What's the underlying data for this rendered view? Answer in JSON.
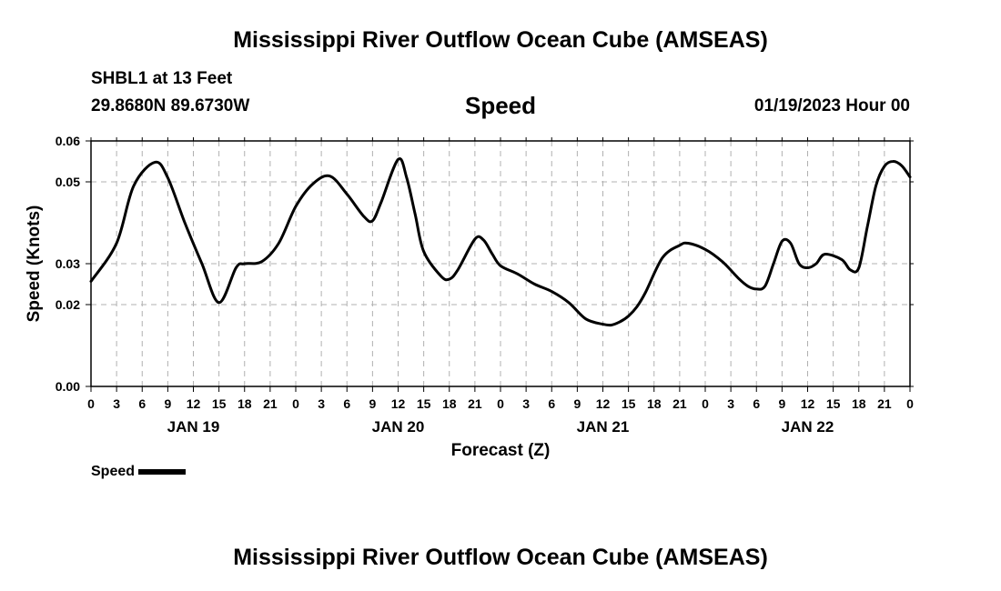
{
  "header": {
    "title": "Mississippi River Outflow Ocean Cube (AMSEAS)",
    "station": "SHBL1 at 13 Feet",
    "coords": "29.8680N  89.6730W",
    "variable": "Speed",
    "datetime": "01/19/2023 Hour 00"
  },
  "footer": {
    "title": "Mississippi River Outflow Ocean Cube (AMSEAS)"
  },
  "legend": {
    "label": "Speed"
  },
  "chart_data": {
    "type": "line",
    "title": "Speed",
    "xlabel": "Forecast (Z)",
    "ylabel": "Speed (Knots)",
    "xlim": [
      0,
      96
    ],
    "ylim": [
      0,
      0.06
    ],
    "yticks": [
      0.0,
      0.02,
      0.03,
      0.05,
      0.06
    ],
    "ytick_labels": [
      "0.00",
      "0.02",
      "0.03",
      "0.05",
      "0.06"
    ],
    "xtick_labels": [
      "0",
      "3",
      "6",
      "9",
      "12",
      "15",
      "18",
      "21",
      "0",
      "3",
      "6",
      "9",
      "12",
      "15",
      "18",
      "21",
      "0",
      "3",
      "6",
      "9",
      "12",
      "15",
      "18",
      "21",
      "0",
      "3",
      "6",
      "9",
      "12",
      "15",
      "18",
      "21",
      "0"
    ],
    "day_labels": [
      {
        "label": "JAN 19",
        "x": 12
      },
      {
        "label": "JAN 20",
        "x": 36
      },
      {
        "label": "JAN 21",
        "x": 60
      },
      {
        "label": "JAN 22",
        "x": 84
      }
    ],
    "grid": true,
    "legend_position": "bottom-left",
    "series": [
      {
        "name": "Speed",
        "color": "#000000",
        "x": [
          0,
          3,
          5,
          7.5,
          9,
          11,
          13,
          15,
          17,
          18,
          20,
          22,
          24,
          26,
          28,
          30,
          32,
          33,
          34,
          36,
          37,
          38,
          39,
          41,
          42,
          43,
          45,
          46,
          47,
          48,
          50,
          52,
          54,
          56,
          58,
          60,
          61,
          62,
          63,
          64,
          65,
          67,
          69,
          70,
          72,
          74,
          76,
          77,
          78,
          79,
          80,
          81,
          82,
          83,
          84,
          85,
          86,
          88,
          89,
          90,
          91,
          92,
          93,
          94,
          95,
          96
        ],
        "y": [
          0.0257,
          0.035,
          0.049,
          0.0548,
          0.051,
          0.04,
          0.03,
          0.0205,
          0.029,
          0.03,
          0.0305,
          0.035,
          0.044,
          0.0495,
          0.0514,
          0.047,
          0.0415,
          0.0405,
          0.045,
          0.0555,
          0.051,
          0.042,
          0.033,
          0.027,
          0.0262,
          0.0285,
          0.036,
          0.0358,
          0.0325,
          0.0295,
          0.0275,
          0.025,
          0.0232,
          0.0205,
          0.0165,
          0.0152,
          0.015,
          0.0158,
          0.0172,
          0.0195,
          0.023,
          0.0315,
          0.0345,
          0.035,
          0.0335,
          0.0305,
          0.0262,
          0.0245,
          0.0238,
          0.0245,
          0.03,
          0.0355,
          0.035,
          0.03,
          0.029,
          0.03,
          0.0323,
          0.031,
          0.0285,
          0.029,
          0.039,
          0.049,
          0.0538,
          0.055,
          0.054,
          0.0512
        ]
      }
    ]
  }
}
